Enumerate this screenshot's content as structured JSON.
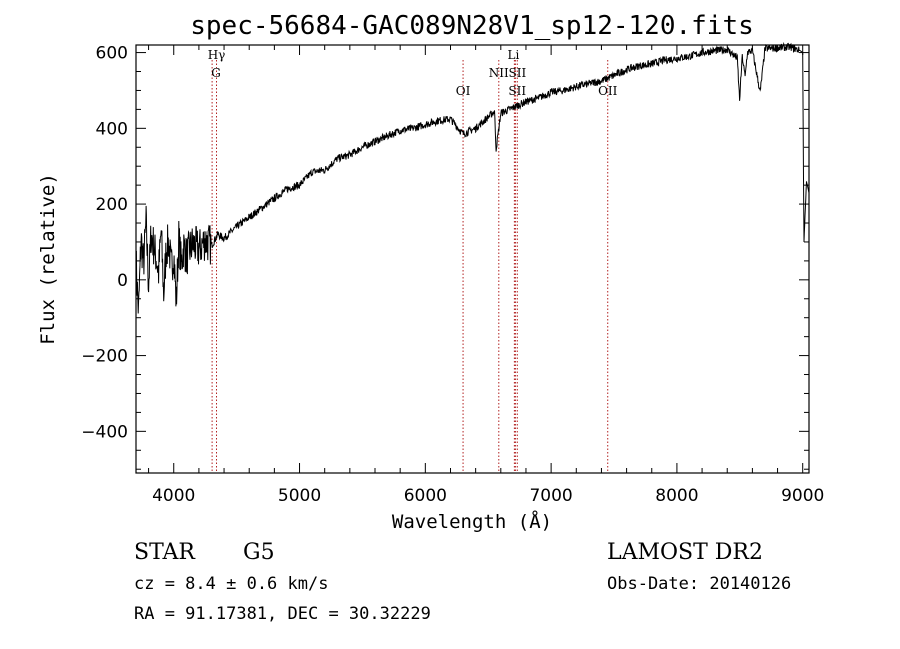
{
  "chart_data": {
    "type": "line",
    "title": "spec-56684-GAC089N28V1_sp12-120.fits",
    "xlabel": "Wavelength (Å)",
    "ylabel": "Flux (relative)",
    "xlim": [
      3700,
      9050
    ],
    "ylim": [
      -510,
      620
    ],
    "x_ticks": [
      4000,
      5000,
      6000,
      7000,
      8000,
      9000
    ],
    "y_ticks": [
      -400,
      -200,
      0,
      200,
      400,
      600
    ],
    "x_tick_labels": [
      "4000",
      "5000",
      "6000",
      "7000",
      "8000",
      "9000"
    ],
    "y_tick_labels": [
      "−400",
      "−200",
      "0",
      "200",
      "400",
      "600"
    ],
    "line_color": "#000000",
    "marker_color": "#b22222",
    "series": [
      {
        "x": [
          3700,
          3720,
          3740,
          3760,
          3780,
          3800,
          3820,
          3840,
          3860,
          3880,
          3900,
          3920,
          3940,
          3960,
          3980,
          4000,
          4020,
          4040,
          4060,
          4080,
          4100,
          4150,
          4200,
          4250,
          4300,
          4350,
          4400,
          4450,
          4500,
          4600,
          4700,
          4800,
          4900,
          5000,
          5100,
          5200,
          5300,
          5400,
          5500,
          5600,
          5700,
          5800,
          5900,
          6000,
          6100,
          6200,
          6300,
          6400,
          6500,
          6550,
          6563,
          6600,
          6700,
          6800,
          6900,
          7000,
          7100,
          7200,
          7300,
          7400,
          7500,
          7600,
          7700,
          7800,
          7900,
          8000,
          8100,
          8200,
          8300,
          8400,
          8480,
          8498,
          8520,
          8542,
          8560,
          8600,
          8662,
          8700,
          8800,
          8900,
          8980,
          9000,
          9010,
          9030,
          9050
        ],
        "y": [
          50,
          -90,
          110,
          40,
          150,
          -10,
          120,
          90,
          60,
          20,
          130,
          -40,
          80,
          100,
          30,
          70,
          -60,
          110,
          40,
          90,
          60,
          95,
          80,
          105,
          90,
          120,
          110,
          125,
          140,
          165,
          190,
          215,
          240,
          250,
          285,
          290,
          320,
          330,
          350,
          365,
          380,
          395,
          400,
          410,
          420,
          425,
          385,
          400,
          430,
          445,
          345,
          440,
          455,
          470,
          480,
          495,
          500,
          510,
          518,
          525,
          540,
          555,
          565,
          570,
          580,
          585,
          590,
          600,
          605,
          608,
          585,
          475,
          590,
          535,
          600,
          605,
          495,
          610,
          612,
          615,
          605,
          600,
          100,
          260,
          230
        ]
      }
    ],
    "spectral_lines": [
      {
        "x": 4340,
        "labels": [
          "Hγ"
        ]
      },
      {
        "x": 4305,
        "labels": [
          "G"
        ]
      },
      {
        "x": 6300,
        "labels": [
          "OI"
        ]
      },
      {
        "x": 6584,
        "labels": [
          "NII"
        ]
      },
      {
        "x": 6708,
        "labels": [
          "Li"
        ]
      },
      {
        "x": 6716,
        "labels": [
          "SII"
        ]
      },
      {
        "x": 6731,
        "labels": [
          "SII"
        ]
      },
      {
        "x": 7450,
        "labels": [
          "OII"
        ]
      }
    ],
    "grid": false
  },
  "info": {
    "object_class": "STAR",
    "subclass": "G5",
    "cz": "cz = 8.4 ± 0.6 km/s",
    "coords": "RA =  91.17381, DEC =  30.32229",
    "survey": "LAMOST DR2",
    "obs_date": "Obs-Date: 20140126"
  }
}
